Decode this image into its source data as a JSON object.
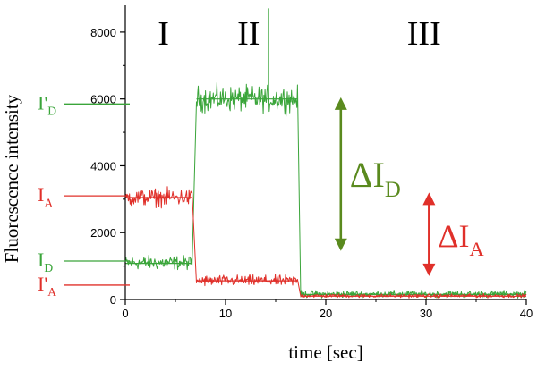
{
  "chart_data": {
    "type": "line",
    "xlabel": "time [sec]",
    "ylabel": "Fluorescence intensity",
    "xlim": [
      0,
      40
    ],
    "ylim": [
      0,
      8800
    ],
    "xticks": [
      0,
      10,
      20,
      30,
      40
    ],
    "yticks": [
      0,
      2000,
      4000,
      6000,
      8000
    ],
    "grid": false,
    "legend": "none",
    "phases": [
      {
        "label": "I",
        "x": 3.8
      },
      {
        "label": "II",
        "x": 12.3
      },
      {
        "label": "III",
        "x": 29.8
      }
    ],
    "series": [
      {
        "color": "#3aa53a",
        "segments": [
          {
            "x0": 0,
            "x1": 6.7,
            "mean": 1100,
            "noise": 300,
            "fit": 1080
          },
          {
            "x0": 7.1,
            "x1": 17.2,
            "mean": 6000,
            "noise": 550,
            "fit": 6000
          },
          {
            "x0": 17.5,
            "x1": 40,
            "mean": 160,
            "noise": 150,
            "fit": 150
          }
        ],
        "spike": {
          "x": 14.3,
          "y": 8700
        }
      },
      {
        "color": "#e0302a",
        "segments": [
          {
            "x0": 0,
            "x1": 6.7,
            "mean": 3050,
            "noise": 380,
            "fit": 3050
          },
          {
            "x0": 7.1,
            "x1": 17.2,
            "mean": 560,
            "noise": 240,
            "fit": 560
          },
          {
            "x0": 17.5,
            "x1": 40,
            "mean": 110,
            "noise": 80,
            "fit": 100
          }
        ]
      }
    ],
    "level_markers": [
      {
        "label_main": "I'",
        "label_sub": "D",
        "y": 5850,
        "color": "#3aa53a"
      },
      {
        "label_main": "I",
        "label_sub": "A",
        "y": 3100,
        "color": "#e0302a"
      },
      {
        "label_main": "I",
        "label_sub": "D",
        "y": 1150,
        "color": "#3aa53a"
      },
      {
        "label_main": "I'",
        "label_sub": "A",
        "y": 430,
        "color": "#e0302a"
      }
    ],
    "deltas": [
      {
        "label_main": "ΔI",
        "label_sub": "D",
        "x": 21.5,
        "y_top": 6050,
        "y_bottom": 1450,
        "color": "#5a8a1e"
      },
      {
        "label_main": "ΔI",
        "label_sub": "A",
        "x": 30.3,
        "y_top": 3200,
        "y_bottom": 700,
        "color": "#e0302a"
      }
    ]
  }
}
